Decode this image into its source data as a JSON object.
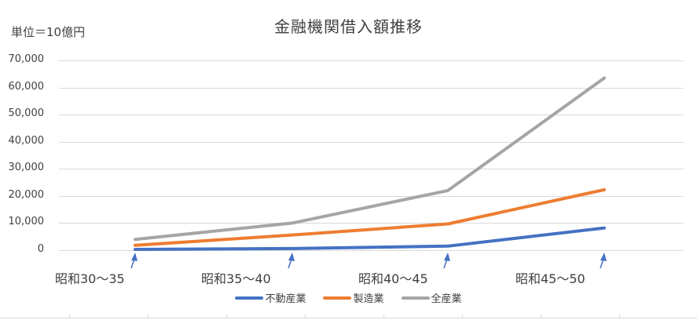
{
  "chart": {
    "title": "金融機関借入額推移",
    "unit_label": "単位＝10億円",
    "y_ticks": [
      "70,000",
      "60,000",
      "50,000",
      "40,000",
      "30,000",
      "20,000",
      "10,000",
      "0"
    ],
    "x_labels": [
      "昭和30～35",
      "昭和35～40",
      "昭和40～45",
      "昭和45～50"
    ],
    "legend": [
      "不動産業",
      "製造業",
      "全産業"
    ]
  },
  "colors": {
    "real_estate": "#4472c4",
    "manufacturing": "#ed7d31",
    "all_industries": "#a5a5a5",
    "grid": "#d9d9d9",
    "text": "#404040"
  },
  "chart_data": {
    "type": "line",
    "title": "金融機関借入額推移",
    "annotation": "単位＝10億円",
    "xlabel": "",
    "ylabel": "",
    "categories": [
      "昭和30～35",
      "昭和35～40",
      "昭和40～45",
      "昭和45～50"
    ],
    "series": [
      {
        "name": "不動産業",
        "color": "#4472c4",
        "values": [
          300,
          600,
          1500,
          8200
        ]
      },
      {
        "name": "製造業",
        "color": "#ed7d31",
        "values": [
          1800,
          5600,
          9700,
          22300
        ]
      },
      {
        "name": "全産業",
        "color": "#a5a5a5",
        "values": [
          4000,
          10000,
          22000,
          63500
        ]
      }
    ],
    "ylim": [
      0,
      70000
    ],
    "y_ticks": [
      0,
      10000,
      20000,
      30000,
      40000,
      50000,
      60000,
      70000
    ],
    "grid": true,
    "legend_position": "bottom"
  }
}
